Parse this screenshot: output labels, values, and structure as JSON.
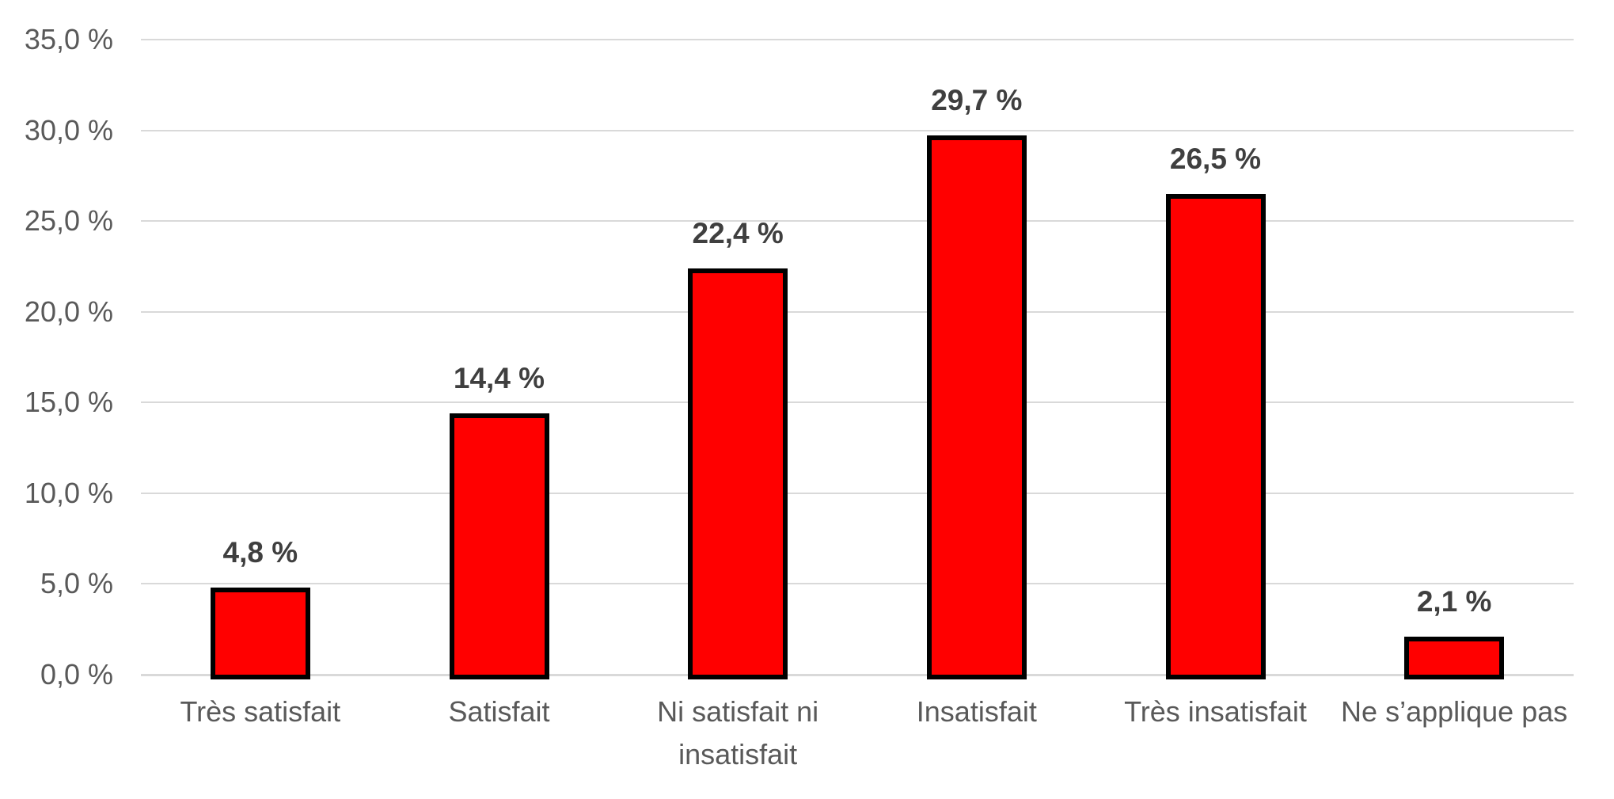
{
  "chart_data": {
    "type": "bar",
    "title": "",
    "xlabel": "",
    "ylabel": "",
    "categories": [
      "Très satisfait",
      "Satisfait",
      "Ni satisfait ni insatisfait",
      "Insatisfait",
      "Très insatisfait",
      "Ne s’applique pas"
    ],
    "values": [
      4.8,
      14.4,
      22.4,
      29.7,
      26.5,
      2.1
    ],
    "data_labels": [
      "4,8 %",
      "14,4 %",
      "22,4 %",
      "29,7 %",
      "26,5 %",
      "2,1 %"
    ],
    "y_axis": {
      "range": [
        0,
        35
      ],
      "tick_values": [
        0,
        5,
        10,
        15,
        20,
        25,
        30,
        35
      ],
      "tick_labels": [
        "0,0 %",
        "5,0 %",
        "10,0 %",
        "15,0 %",
        "20,0 %",
        "25,0 %",
        "30,0 %",
        "35,0 %"
      ]
    },
    "series_color": "#FF0000",
    "bar_border_color": "#000000",
    "layout": {
      "grid": true,
      "legend": false,
      "data_label_position": "outside-end",
      "colors": {
        "gridline": "#D9D9D9",
        "axis_line": "#D9D9D9",
        "tick_label": "#595959",
        "data_label": "#3F3F3F",
        "background": "#FFFFFF"
      }
    }
  }
}
